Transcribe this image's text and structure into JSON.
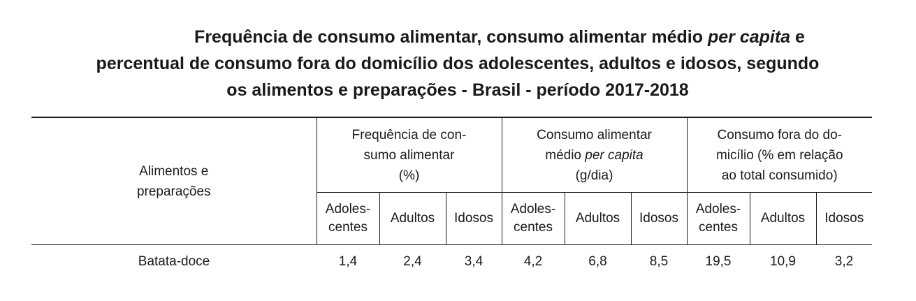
{
  "title": {
    "line1_a": "Frequência de consumo alimentar, consumo alimentar médio ",
    "line1_italic": "per capita",
    "line1_b": " e",
    "line2": "percentual de consumo fora do domicílio dos adolescentes, adultos e idosos, segundo",
    "line3": "os alimentos e preparações - Brasil - período 2017-2018"
  },
  "table": {
    "row_header": {
      "line1": "Alimentos e",
      "line2": "preparações"
    },
    "groups": [
      {
        "line1": "Frequência de con-",
        "line2": "sumo alimentar",
        "line3": "(%)"
      },
      {
        "line1": "Consumo alimentar",
        "line2_a": "médio ",
        "line2_italic": "per capita",
        "line3": "(g/dia)"
      },
      {
        "line1": "Consumo fora do do-",
        "line2": "micílio (% em relação",
        "line3": "ao total consumido)"
      }
    ],
    "subheaders": {
      "adolescentes_line1": "Adoles-",
      "adolescentes_line2": "centes",
      "adultos": "Adultos",
      "idosos": "Idosos"
    },
    "rows": [
      {
        "label": "Batata-doce",
        "values": [
          "1,4",
          "2,4",
          "3,4",
          "4,2",
          "6,8",
          "8,5",
          "19,5",
          "10,9",
          "3,2"
        ]
      }
    ]
  }
}
